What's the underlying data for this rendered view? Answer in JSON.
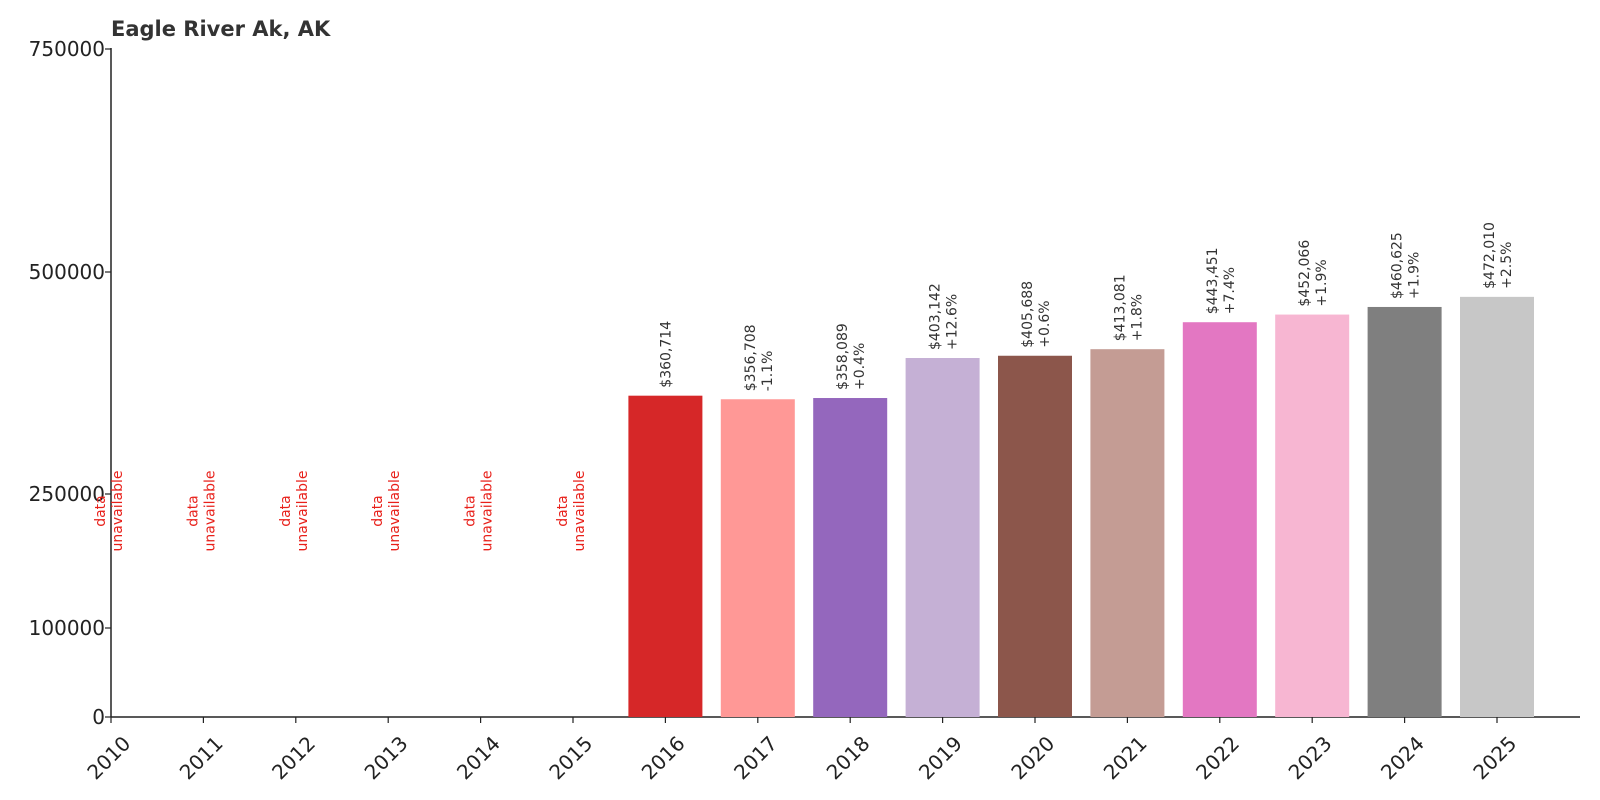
{
  "chart_data": {
    "type": "bar",
    "title": "Eagle River Ak, AK",
    "xlabel": "",
    "ylabel": "",
    "categories": [
      "2010",
      "2011",
      "2012",
      "2013",
      "2014",
      "2015",
      "2016",
      "2017",
      "2018",
      "2019",
      "2020",
      "2021",
      "2022",
      "2023",
      "2024",
      "2025"
    ],
    "values": [
      null,
      null,
      null,
      null,
      null,
      null,
      360714,
      356708,
      358089,
      403142,
      405688,
      413081,
      443451,
      452066,
      460625,
      472010
    ],
    "value_labels": [
      "",
      "",
      "",
      "",
      "",
      "",
      "$360,714",
      "$356,708",
      "$358,089",
      "$403,142",
      "$405,688",
      "$413,081",
      "$443,451",
      "$452,066",
      "$460,625",
      "$472,010"
    ],
    "change_labels": [
      "",
      "",
      "",
      "",
      "",
      "",
      "",
      "-1.1%",
      "+0.4%",
      "+12.6%",
      "+0.6%",
      "+1.8%",
      "+7.4%",
      "+1.9%",
      "+1.9%",
      "+2.5%"
    ],
    "missing_label": [
      "data",
      "unavailable"
    ],
    "colors": [
      "#d62728",
      "#d62728",
      "#d62728",
      "#d62728",
      "#d62728",
      "#d62728",
      "#d62728",
      "#ff9896",
      "#9467bd",
      "#c5b0d5",
      "#8c564b",
      "#c49c94",
      "#e377c2",
      "#f7b6d2",
      "#7f7f7f",
      "#c7c7c7"
    ],
    "missing_color": "#e8201a",
    "yticks": [
      0,
      100000,
      250000,
      500000,
      750000
    ],
    "ylim": [
      0,
      750000
    ],
    "grid": false,
    "legend": "none"
  }
}
